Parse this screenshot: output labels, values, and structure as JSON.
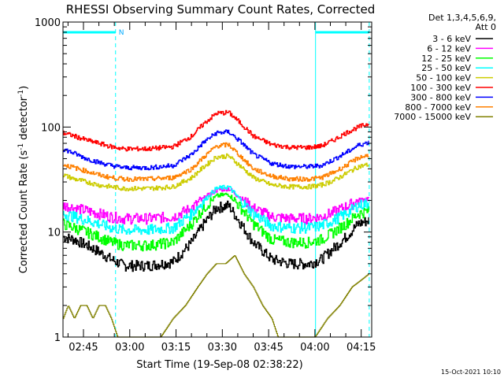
{
  "chart_data": {
    "type": "line",
    "title": "RHESSI Observing Summary Count Rates, Corrected",
    "xlabel": "Start Time (19-Sep-08 02:38:22)",
    "ylabel_main": "Corrected Count Rate (s",
    "ylabel_sup1": "-1",
    "ylabel_mid": " detector",
    "ylabel_sup2": "-1",
    "ylabel_end": ")",
    "yscale": "log",
    "ylim": [
      1,
      1000
    ],
    "xlim_minutes": [
      158.37,
      258.4
    ],
    "y_ticks": [
      {
        "value": 1,
        "label": "1"
      },
      {
        "value": 10,
        "label": "10"
      },
      {
        "value": 100,
        "label": "100"
      },
      {
        "value": 1000,
        "label": "1000"
      }
    ],
    "x_ticks": [
      {
        "value": 165,
        "label": "02:45"
      },
      {
        "value": 180,
        "label": "03:00"
      },
      {
        "value": 195,
        "label": "03:15"
      },
      {
        "value": 210,
        "label": "03:30"
      },
      {
        "value": 225,
        "label": "03:45"
      },
      {
        "value": 240,
        "label": "04:00"
      },
      {
        "value": 255,
        "label": "04:15"
      }
    ],
    "detectors_label": "Det 1,3,4,5,6,9,",
    "attenuator_label": "Att 0",
    "night_flag_label": "N",
    "night_intervals": [
      [
        158.37,
        175.4
      ],
      [
        240.2,
        257.6
      ]
    ],
    "dashed_markers": [
      175.4,
      257.6
    ],
    "solid_markers": [
      158.37,
      240.2
    ],
    "series": [
      {
        "name": "3 - 6 keV",
        "color": "#000000",
        "x": [
          158.37,
          162,
          166,
          170,
          174,
          178,
          186,
          194,
          200,
          204,
          208,
          212,
          216,
          220,
          226,
          232,
          238,
          242,
          246,
          250,
          254,
          257.5
        ],
        "y": [
          9,
          8.5,
          7.5,
          6.5,
          5.5,
          4.8,
          4.8,
          5.2,
          8,
          12,
          17,
          18,
          12,
          8,
          5.5,
          5,
          5,
          5.5,
          7,
          9,
          12,
          13
        ]
      },
      {
        "name": "6 - 12 keV",
        "color": "#ff00ff",
        "x": [
          158.37,
          162,
          166,
          170,
          174,
          178,
          186,
          194,
          200,
          204,
          208,
          212,
          216,
          220,
          226,
          232,
          238,
          242,
          246,
          250,
          254,
          257.5
        ],
        "y": [
          18,
          17,
          16,
          15,
          14,
          13.5,
          13.5,
          14,
          17,
          21,
          25,
          26,
          21,
          17,
          14,
          13.5,
          13.5,
          14,
          15.5,
          17.5,
          20,
          21
        ]
      },
      {
        "name": "12 - 25 keV",
        "color": "#00ff00",
        "x": [
          158.37,
          162,
          166,
          170,
          174,
          178,
          186,
          194,
          200,
          204,
          208,
          212,
          216,
          220,
          226,
          232,
          238,
          242,
          246,
          250,
          254,
          257.5
        ],
        "y": [
          12,
          11,
          10,
          9,
          8,
          7.5,
          7.5,
          8,
          12,
          17,
          22,
          23,
          17,
          12,
          8.5,
          8,
          8,
          8.5,
          10,
          12,
          15,
          16
        ]
      },
      {
        "name": "25 - 50 keV",
        "color": "#00ffff",
        "x": [
          158.37,
          162,
          166,
          170,
          174,
          178,
          186,
          194,
          200,
          204,
          208,
          212,
          216,
          220,
          226,
          232,
          238,
          242,
          246,
          250,
          254,
          257.5
        ],
        "y": [
          15,
          14,
          13,
          12,
          11,
          10.5,
          10.5,
          11,
          15,
          20,
          26,
          27,
          20,
          15,
          11.5,
          11,
          11,
          11.5,
          13,
          15,
          18,
          19
        ]
      },
      {
        "name": "50 - 100 keV",
        "color": "#cccc00",
        "x": [
          158.37,
          162,
          166,
          170,
          174,
          178,
          186,
          194,
          200,
          204,
          208,
          212,
          216,
          220,
          226,
          232,
          238,
          242,
          246,
          250,
          254,
          257.5
        ],
        "y": [
          35,
          32,
          30,
          28,
          27,
          26,
          26,
          27,
          33,
          42,
          52,
          53,
          42,
          33,
          28,
          27,
          27,
          28,
          31,
          36,
          42,
          44
        ]
      },
      {
        "name": "100 - 300 keV",
        "color": "#ff0000",
        "x": [
          158.37,
          162,
          166,
          170,
          174,
          178,
          186,
          194,
          200,
          204,
          208,
          212,
          216,
          220,
          226,
          232,
          238,
          242,
          246,
          250,
          254,
          257.5
        ],
        "y": [
          88,
          82,
          75,
          70,
          65,
          62,
          62,
          65,
          82,
          108,
          135,
          138,
          108,
          82,
          68,
          64,
          64,
          66,
          75,
          88,
          100,
          108
        ]
      },
      {
        "name": "300 - 800 keV",
        "color": "#0000ff",
        "x": [
          158.37,
          162,
          166,
          170,
          174,
          178,
          186,
          194,
          200,
          204,
          208,
          212,
          216,
          220,
          226,
          232,
          238,
          242,
          246,
          250,
          254,
          257.5
        ],
        "y": [
          62,
          56,
          50,
          46,
          43,
          41,
          41,
          43,
          55,
          72,
          88,
          90,
          72,
          55,
          45,
          42,
          42,
          43,
          49,
          57,
          67,
          72
        ]
      },
      {
        "name": "800 - 7000 keV",
        "color": "#ff8000",
        "x": [
          158.37,
          162,
          166,
          170,
          174,
          178,
          186,
          194,
          200,
          204,
          208,
          212,
          216,
          220,
          226,
          232,
          238,
          242,
          246,
          250,
          254,
          257.5
        ],
        "y": [
          44,
          41,
          38,
          35,
          33,
          32,
          32,
          33,
          40,
          52,
          66,
          68,
          52,
          40,
          34,
          32,
          32,
          33,
          37,
          43,
          51,
          54
        ]
      },
      {
        "name": "7000 - 15000 keV",
        "color": "#808000",
        "x": [
          158.37,
          160,
          162,
          164,
          166,
          168,
          170,
          172,
          174,
          176,
          186,
          190,
          194,
          198,
          202,
          205,
          208,
          211,
          214,
          217,
          220,
          223,
          226,
          228,
          232,
          240,
          244,
          248,
          252,
          255,
          257.5
        ],
        "y": [
          1.5,
          2,
          1.5,
          2,
          2,
          1.5,
          2,
          2,
          1.5,
          1,
          1,
          1,
          1.5,
          2,
          3,
          4,
          5,
          5,
          6,
          4,
          3,
          2,
          1.5,
          1,
          1,
          1,
          1.5,
          2,
          3,
          3.5,
          4
        ]
      }
    ]
  },
  "timestamp": "15-Oct-2021 10:10"
}
